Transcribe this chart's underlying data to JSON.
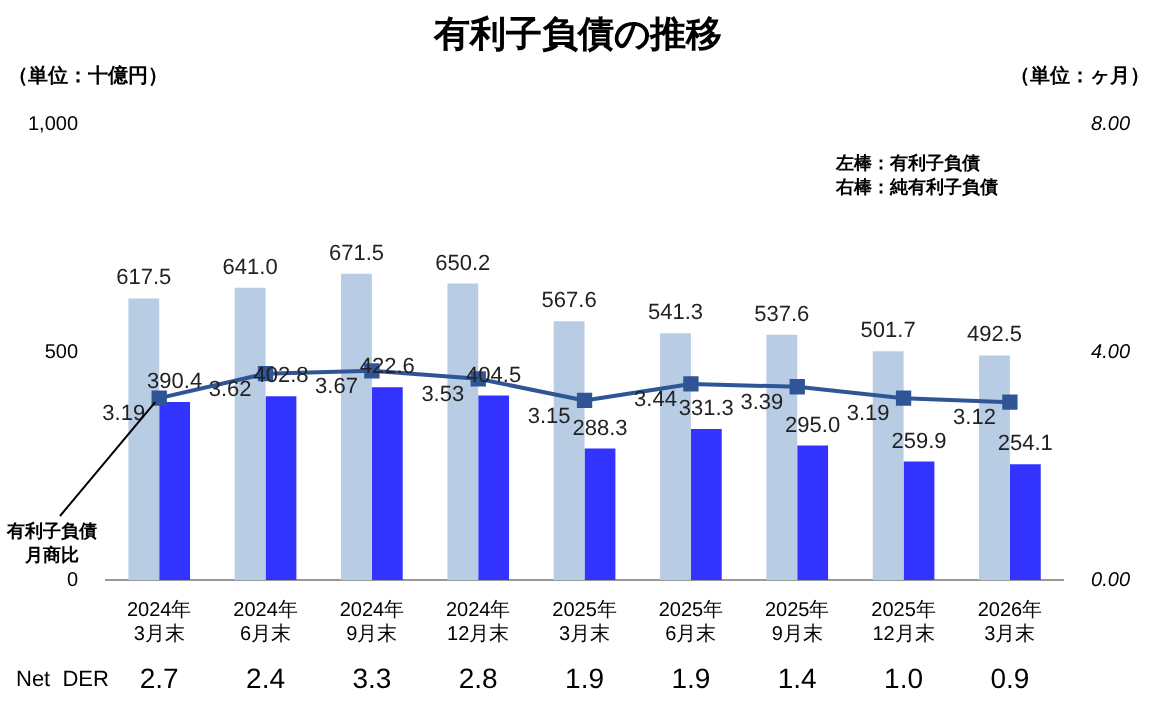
{
  "chart_data": {
    "type": "bar",
    "title": "有利子負債の推移",
    "ylabel": "（単位：十億円）",
    "y2label": "（単位：ヶ月）",
    "categories": [
      "2024年\n3月末",
      "2024年\n6月末",
      "2024年\n9月末",
      "2024年\n12月末",
      "2025年\n3月末",
      "2025年\n6月末",
      "2025年\n9月末",
      "2025年\n12月末",
      "2026年\n3月末"
    ],
    "series": [
      {
        "color": "#b8cce4",
        "values": [
          617.5,
          641.0,
          671.5,
          650.2,
          567.6,
          541.3,
          537.6,
          501.7,
          492.5
        ],
        "value_labels": [
          "617.5",
          "641.0",
          "671.5",
          "650.2",
          "567.6",
          "541.3",
          "537.6",
          "501.7",
          "492.5"
        ]
      },
      {
        "color": "#3333ff",
        "values": [
          390.4,
          402.8,
          422.6,
          404.5,
          288.3,
          331.3,
          295.0,
          259.9,
          254.1
        ],
        "value_labels": [
          "390.4",
          "402.8",
          "422.6",
          "404.5",
          "288.3",
          "331.3",
          "295.0",
          "259.9",
          "254.1"
        ]
      },
      {
        "type": "line",
        "name": "有利子負債月商比",
        "axis": "y2",
        "color": "#2f5597",
        "values": [
          3.19,
          3.62,
          3.67,
          3.53,
          3.15,
          3.44,
          3.39,
          3.19,
          3.12
        ],
        "value_labels": [
          "3.19",
          "3.62",
          "3.67",
          "3.53",
          "3.15",
          "3.44",
          "3.39",
          "3.19",
          "3.12"
        ]
      }
    ],
    "marker": "square",
    "grid": false,
    "legend": false,
    "ylim": [
      0,
      1000
    ],
    "yticks": [
      0,
      500,
      {
        "value": 1000,
        "label": "1,000"
      }
    ],
    "y2lim": [
      0,
      8
    ],
    "y2ticks": [
      {
        "value": 0,
        "label": "0.00"
      },
      {
        "value": 4,
        "label": "4.00"
      },
      {
        "value": 8,
        "label": "8.00"
      }
    ],
    "annotations": [
      "左棒：有利子負債",
      "右棒：純有利子負債",
      "Net  DER",
      "2.7",
      "2.4",
      "3.3",
      "2.8",
      "1.9",
      "1.9",
      "1.4",
      "1.0",
      "0.9"
    ]
  }
}
